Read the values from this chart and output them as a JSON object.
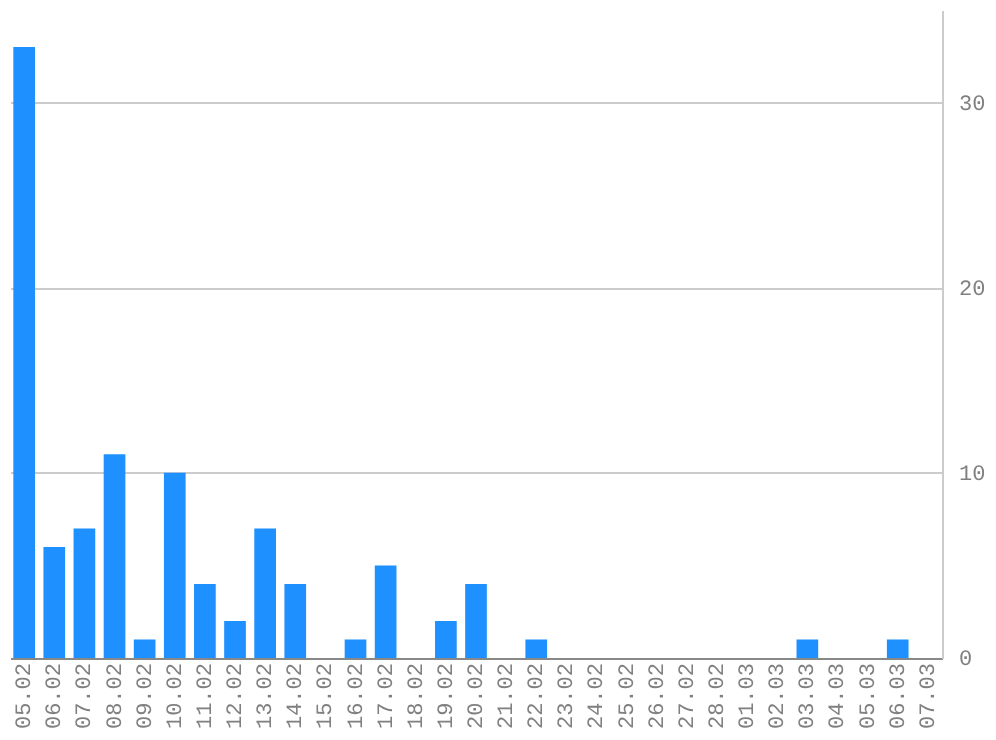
{
  "chart_data": {
    "type": "bar",
    "categories": [
      "05.02",
      "06.02",
      "07.02",
      "08.02",
      "09.02",
      "10.02",
      "11.02",
      "12.02",
      "13.02",
      "14.02",
      "15.02",
      "16.02",
      "17.02",
      "18.02",
      "19.02",
      "20.02",
      "21.02",
      "22.02",
      "23.02",
      "24.02",
      "25.02",
      "26.02",
      "27.02",
      "28.02",
      "01.03",
      "02.03",
      "03.03",
      "04.03",
      "05.03",
      "06.03",
      "07.03"
    ],
    "values": [
      33,
      6,
      7,
      11,
      1,
      10,
      4,
      2,
      7,
      4,
      0,
      1,
      5,
      0,
      2,
      4,
      0,
      1,
      0,
      0,
      0,
      0,
      0,
      0,
      0,
      0,
      1,
      0,
      0,
      1,
      0
    ],
    "color": "#1e90ff",
    "ylim": [
      0,
      35
    ],
    "yticks": [
      0,
      10,
      20,
      30
    ],
    "grid": "y"
  }
}
